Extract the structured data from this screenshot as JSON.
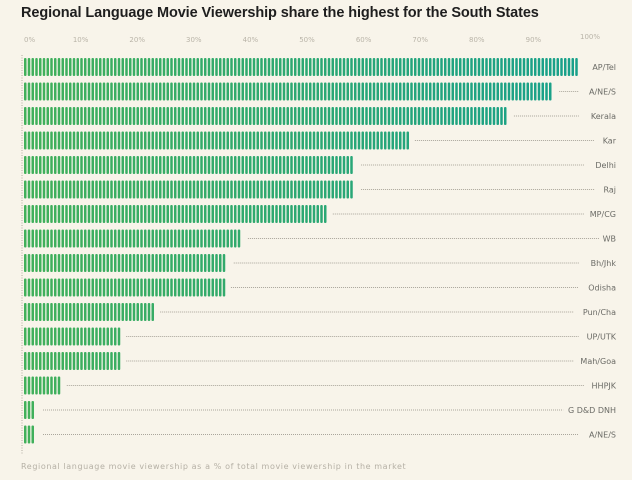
{
  "chart_data": {
    "type": "bar",
    "orientation": "horizontal",
    "title": "Regional Language Movie Viewership share the highest for the South States",
    "xlabel": "",
    "ylabel": "",
    "footnote": "Regional language movie viewership as a % of total movie viewership in the market",
    "xlim": [
      0,
      100
    ],
    "ticks": [
      "0%",
      "10%",
      "20%",
      "30%",
      "40%",
      "50%",
      "60%",
      "70%",
      "80%",
      "90%",
      "100%"
    ],
    "grid": false,
    "legend": "none",
    "categories": [
      "AP/Tel",
      "A/NE/S",
      "Kerala",
      "Kar",
      "Delhi",
      "Raj",
      "MP/CG",
      "WB",
      "Bh/Jhk",
      "Odisha",
      "Pun/Cha",
      "UP/UTK",
      "Mah/Goa",
      "HHPJK",
      "G D&D DNH",
      "A/NE/S"
    ],
    "values": [
      98,
      93.5,
      85.5,
      68,
      58.5,
      58.5,
      53.5,
      38.5,
      36,
      35.5,
      23,
      17,
      17,
      6.5,
      2.3,
      2.3
    ],
    "colors": {
      "start": "#41b05a",
      "end": "#17a08c",
      "leader": "#8f8a80",
      "axis": "#b0aba0"
    }
  }
}
